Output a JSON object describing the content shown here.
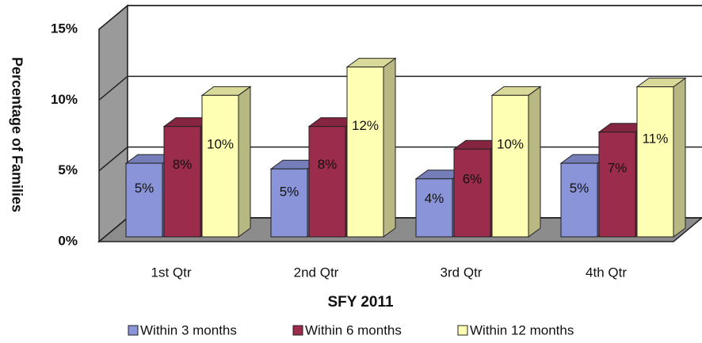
{
  "chart_data": {
    "type": "bar3d",
    "x_label": "SFY 2011",
    "y_label": "Percentage of Families",
    "categories": [
      "1st Qtr",
      "2nd Qtr",
      "3rd Qtr",
      "4th Qtr"
    ],
    "series": [
      {
        "name": "Within 3 months",
        "color": "#8a94d8",
        "values": [
          5.2,
          4.8,
          4.1,
          5.2
        ],
        "value_labels": [
          "5%",
          "5%",
          "4%",
          "5%"
        ]
      },
      {
        "name": "Within 6 months",
        "color": "#9c2c4c",
        "values": [
          7.8,
          7.8,
          6.2,
          7.4
        ],
        "value_labels": [
          "8%",
          "8%",
          "6%",
          "7%"
        ]
      },
      {
        "name": "Within 12 months",
        "color": "#ffffb4",
        "values": [
          10.0,
          12.0,
          10.0,
          10.6
        ],
        "value_labels": [
          "10%",
          "12%",
          "10%",
          "11%"
        ]
      }
    ],
    "ylim": [
      0,
      15
    ],
    "yticks": [
      {
        "value": 0,
        "label": "0%"
      },
      {
        "value": 5,
        "label": "5%"
      },
      {
        "value": 10,
        "label": "10%"
      },
      {
        "value": 15,
        "label": "15%"
      }
    ],
    "grid": true,
    "legend": "bottom"
  }
}
